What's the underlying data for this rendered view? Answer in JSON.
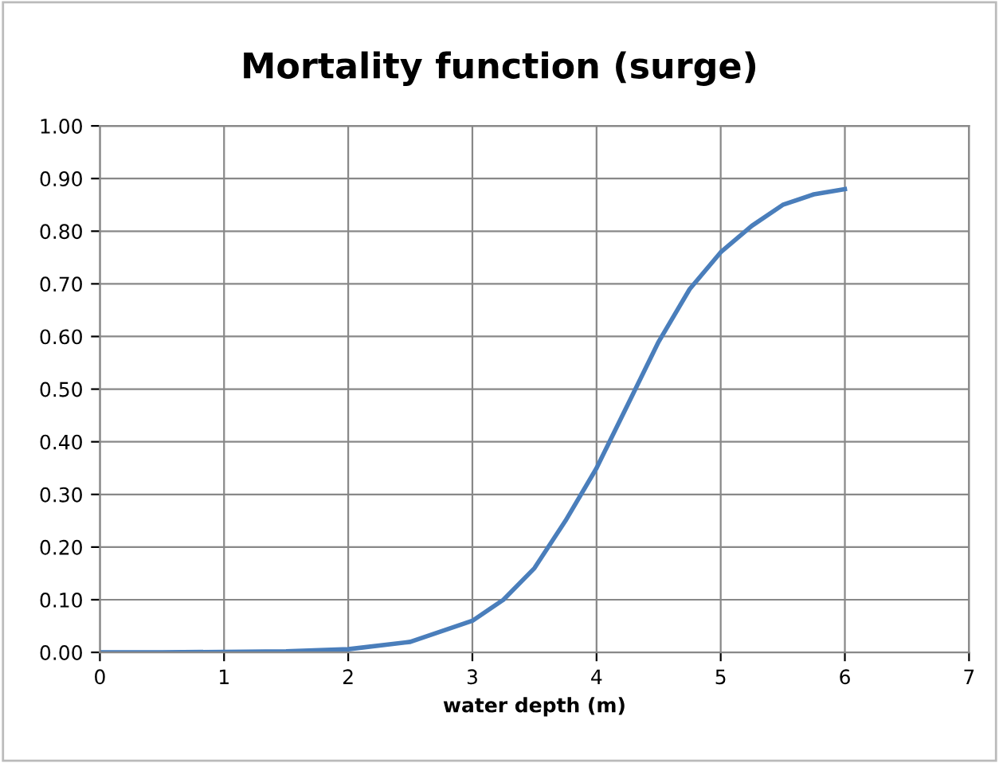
{
  "chart_data": {
    "type": "line",
    "title": "Mortality function (surge)",
    "xlabel": "water depth (m)",
    "x": [
      0,
      0.5,
      1,
      1.5,
      2,
      2.5,
      3,
      3.25,
      3.5,
      3.75,
      4,
      4.25,
      4.5,
      4.75,
      5,
      5.25,
      5.5,
      5.75,
      6
    ],
    "series": [
      {
        "color": "#4a7ebb",
        "values": [
          0,
          0,
          0.001,
          0.002,
          0.006,
          0.02,
          0.06,
          0.1,
          0.16,
          0.25,
          0.35,
          0.47,
          0.59,
          0.69,
          0.76,
          0.81,
          0.85,
          0.87,
          0.88
        ]
      }
    ],
    "xlim": [
      0,
      7
    ],
    "xticks": [
      0,
      1,
      2,
      3,
      4,
      5,
      6,
      7
    ],
    "ylim": [
      0,
      1
    ],
    "yticks": [
      {
        "value": 0,
        "label": "0.00"
      },
      {
        "value": 0.1,
        "label": "0.10"
      },
      {
        "value": 0.2,
        "label": "0.20"
      },
      {
        "value": 0.3,
        "label": "0.30"
      },
      {
        "value": 0.4,
        "label": "0.40"
      },
      {
        "value": 0.5,
        "label": "0.50"
      },
      {
        "value": 0.6,
        "label": "0.60"
      },
      {
        "value": 0.7,
        "label": "0.70"
      },
      {
        "value": 0.8,
        "label": "0.80"
      },
      {
        "value": 0.9,
        "label": "0.90"
      },
      {
        "value": 1,
        "label": "1.00"
      }
    ],
    "grid": true,
    "marker": "none",
    "line_style": "solid"
  }
}
